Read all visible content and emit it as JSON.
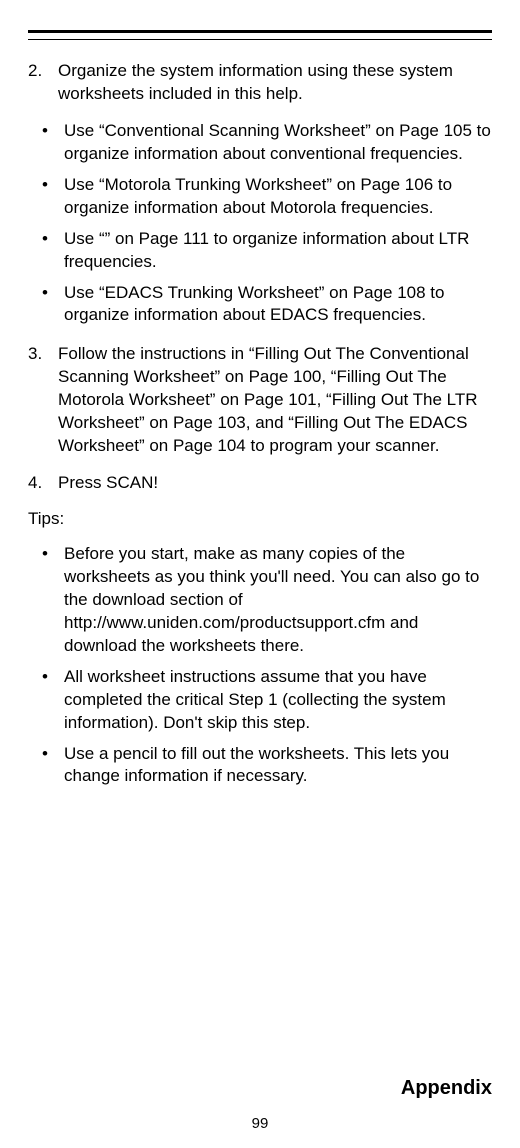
{
  "step2": {
    "num": "2.",
    "text": "Organize the system information using these system worksheets included in this help."
  },
  "step2_bullets": [
    "Use “Conventional Scanning Worksheet” on Page 105 to organize information about conventional frequencies.",
    "Use “Motorola Trunking Worksheet” on Page 106 to organize information about Motorola frequencies.",
    "Use “” on Page 111 to organize information about LTR frequencies.",
    "Use “EDACS Trunking Worksheet” on Page 108 to organize information about EDACS frequencies."
  ],
  "step3": {
    "num": "3.",
    "text": "Follow the instructions in “Filling Out The Conventional Scanning Worksheet” on Page 100, “Filling Out The Motorola Worksheet” on Page 101, “Filling Out The LTR Worksheet” on Page 103, and “Filling Out The EDACS Worksheet” on Page 104 to program your scanner."
  },
  "step4": {
    "num": "4.",
    "text": "Press SCAN!"
  },
  "tips_label": "Tips:",
  "tips_bullets": [
    "Before you start, make as many copies of the worksheets as you think you'll need.  You can also go to the download section of http://www.uniden.com/productsupport.cfm and download the worksheets there.",
    "All worksheet instructions assume that you have completed the critical Step 1 (collecting the system information). Don't skip this step.",
    "Use a pencil to fill out the worksheets.  This lets you change information if necessary."
  ],
  "footer_title": "Appendix",
  "page_number": "99",
  "bullet_char": "•"
}
